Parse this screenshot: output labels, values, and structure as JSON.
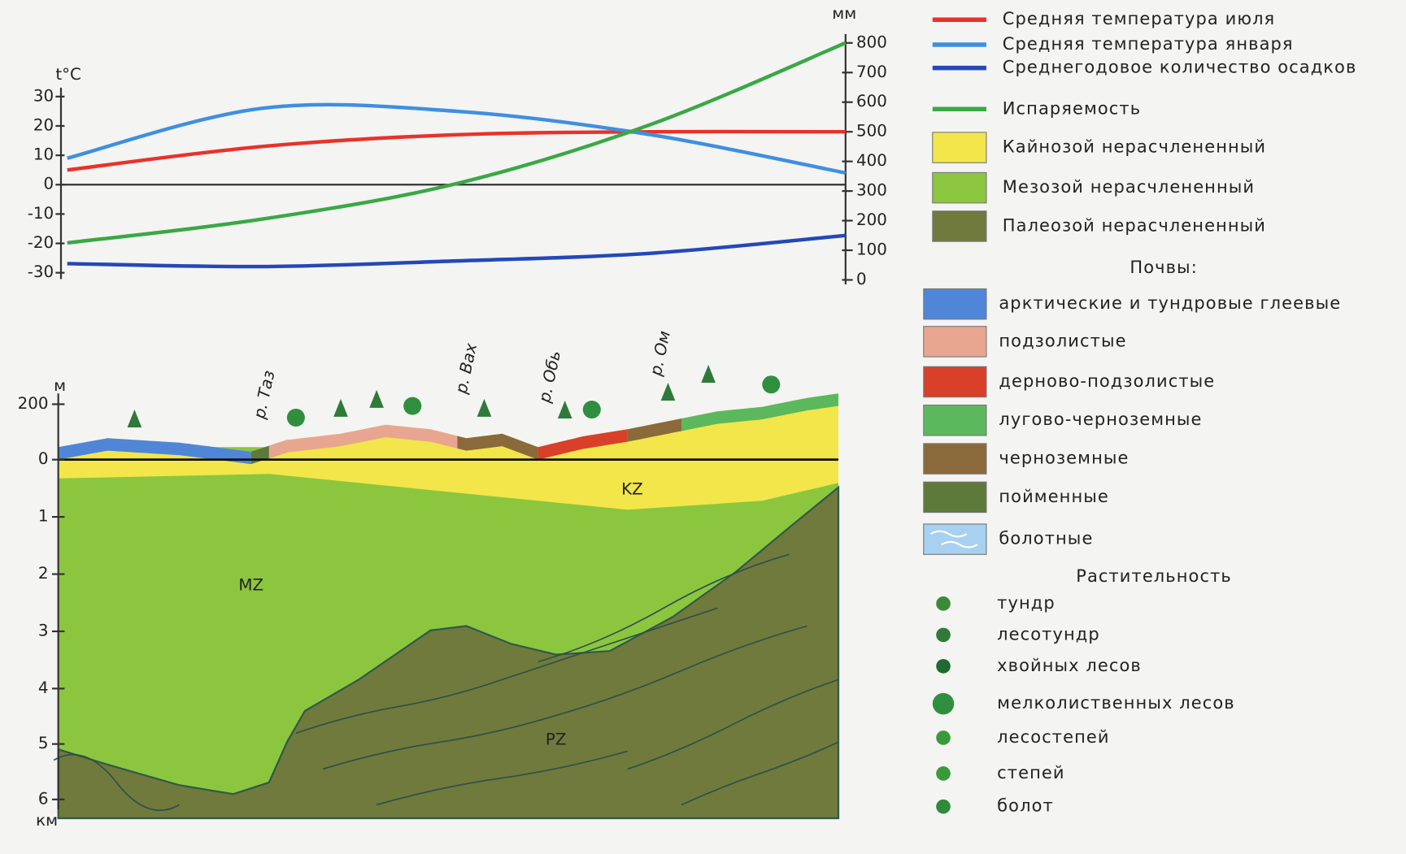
{
  "chart_data": {
    "type": "line",
    "y_label": "t°C",
    "y2_label": "мм",
    "categories": [
      null,
      null,
      null,
      null,
      null
    ],
    "ylim": [
      -30,
      30
    ],
    "yticks": [
      30,
      20,
      10,
      0,
      -10,
      -20,
      -30
    ],
    "y2lim": [
      0,
      800
    ],
    "y2ticks": [
      800,
      700,
      600,
      500,
      400,
      300,
      200,
      100,
      0
    ],
    "series": [
      {
        "name": "Средняя температура июля",
        "color": "#e8322a",
        "values": [
          5,
          13,
          17,
          18,
          18
        ]
      },
      {
        "name": "Средняя температура января",
        "color": "#3f8fe0",
        "values": [
          9,
          26,
          25,
          17,
          4
        ]
      },
      {
        "name": "Среднегодовое количество осадков",
        "color": "#2448b8",
        "axis": "y2",
        "values": [
          55,
          45,
          64,
          90,
          150
        ]
      },
      {
        "name": "Испаряемость",
        "color": "#3aa845",
        "axis": "y2",
        "values": [
          125,
          205,
          325,
          525,
          800
        ]
      }
    ]
  },
  "geology_legend": [
    {
      "label": "Кайнозой нерасчлененный",
      "color": "#f2e64a"
    },
    {
      "label": "Мезозой нерасчлененный",
      "color": "#8cc63f"
    },
    {
      "label": "Палеозой нерасчлененный",
      "color": "#6f7a3c"
    }
  ],
  "soils": {
    "title": "Почвы:",
    "items": [
      {
        "label": "арктические и тундровые глеевые",
        "color": "#4f86d8"
      },
      {
        "label": "подзолистые",
        "color": "#e8a690"
      },
      {
        "label": "дерново-подзолистые",
        "color": "#d8402a"
      },
      {
        "label": "лугово-черноземные",
        "color": "#5cb85c"
      },
      {
        "label": "черноземные",
        "color": "#8a6a3a"
      },
      {
        "label": "пойменные",
        "color": "#5d7a3a"
      },
      {
        "label": "болотные",
        "color": "#a8d0f0"
      }
    ]
  },
  "vegetation": {
    "title": "Растительность",
    "items": [
      "тундр",
      "лесотундр",
      "хвойных лесов",
      "мелколиственных лесов",
      "лесостепей",
      "степей",
      "болот"
    ]
  },
  "profile": {
    "elevation_unit": "м",
    "depth_unit": "км",
    "scale_labels": [
      "200",
      "0",
      "1",
      "2",
      "3",
      "4",
      "5",
      "6"
    ],
    "layers": [
      "KZ",
      "MZ",
      "PZ"
    ],
    "rivers": [
      "р. Таз",
      "р. Вах",
      "р. Обь",
      "р. Ом"
    ]
  }
}
